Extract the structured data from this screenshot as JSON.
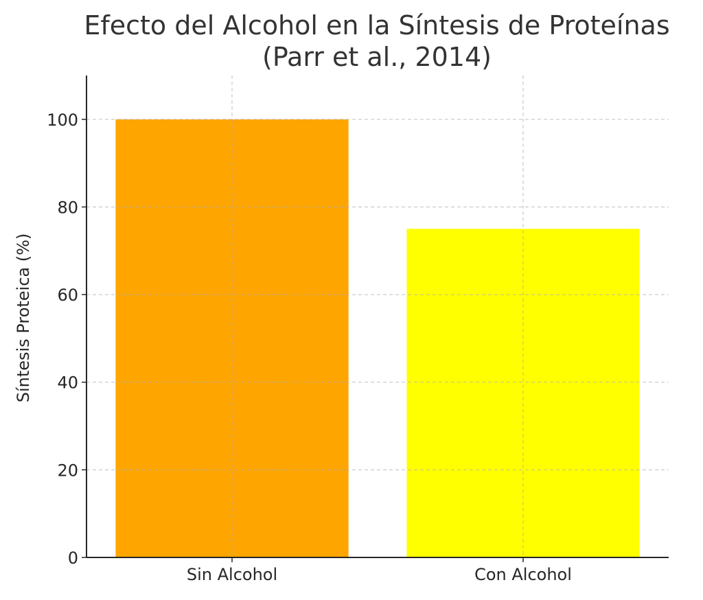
{
  "chart_data": {
    "type": "bar",
    "title_lines": [
      "Efecto del Alcohol en la Síntesis de Proteínas",
      "(Parr et al., 2014)"
    ],
    "xlabel": "",
    "ylabel": "Síntesis Proteica (%)",
    "categories": [
      "Sin Alcohol",
      "Con Alcohol"
    ],
    "values": [
      100,
      75
    ],
    "colors": [
      "#ffa500",
      "#ffff00"
    ],
    "ylim": [
      0,
      110
    ],
    "yticks": [
      0,
      20,
      40,
      60,
      80,
      100
    ],
    "grid": true
  }
}
